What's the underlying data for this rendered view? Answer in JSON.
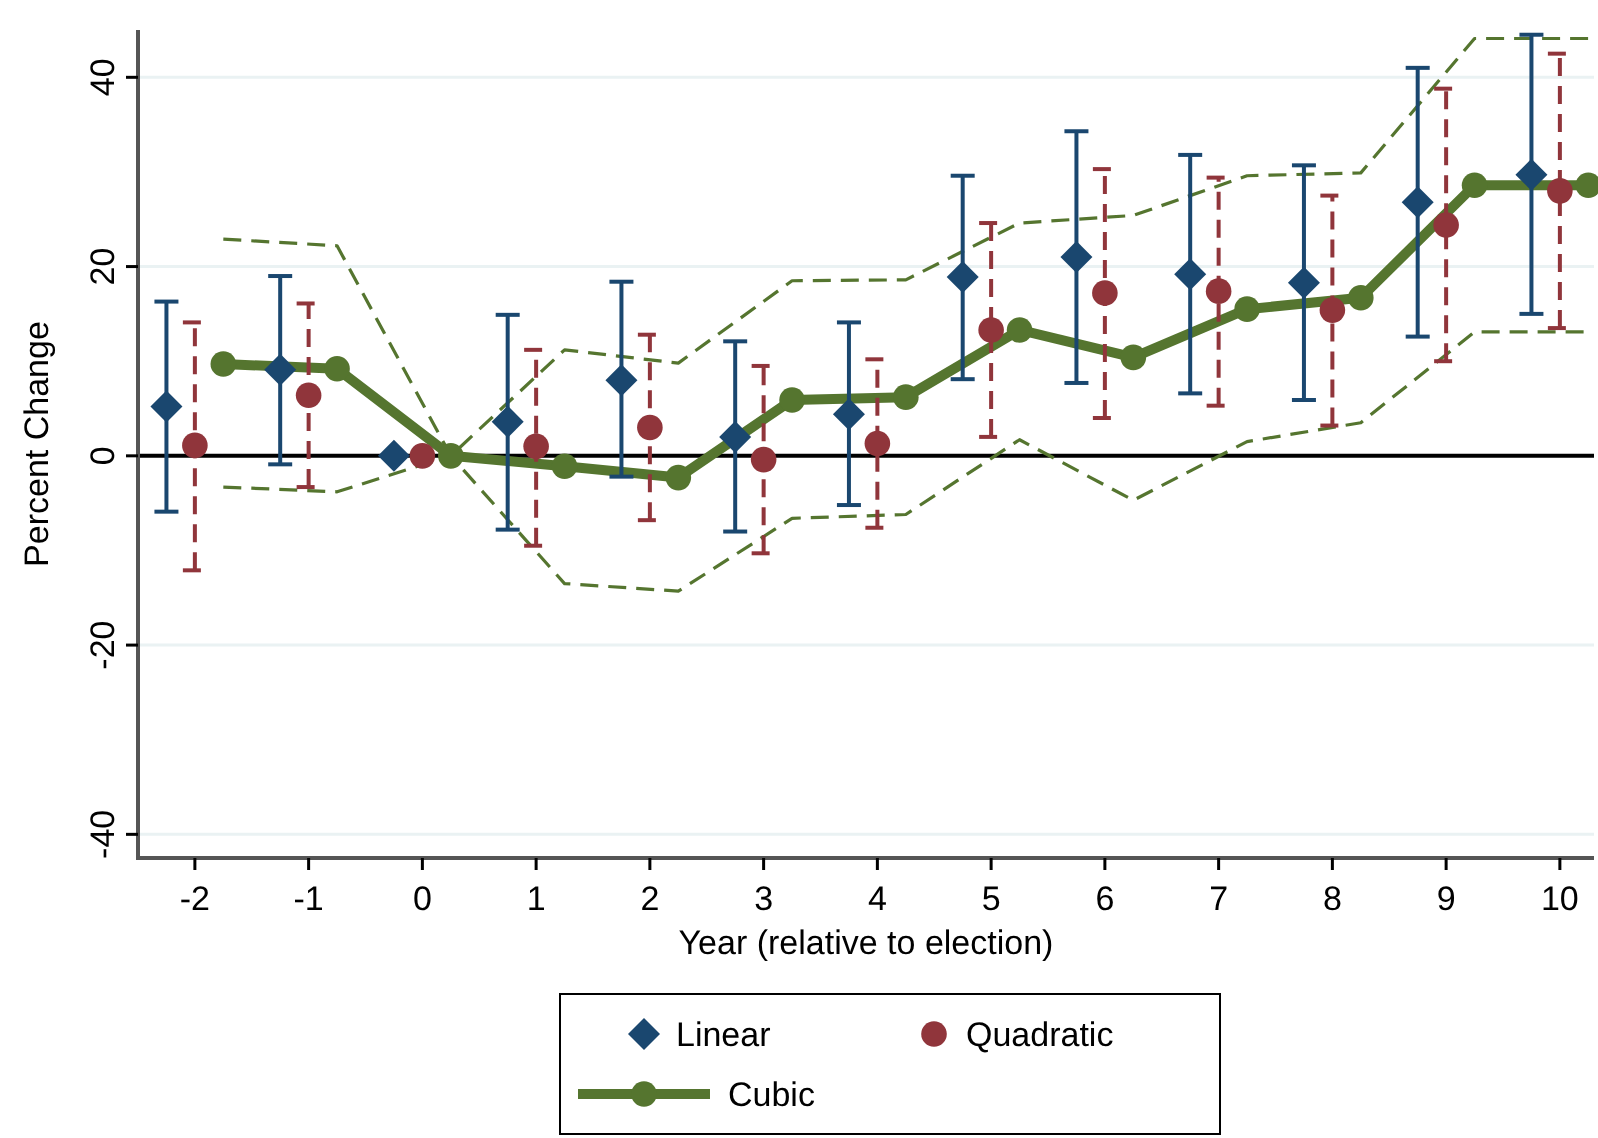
{
  "chart_data": {
    "type": "scatter",
    "xlabel": "Year (relative to election)",
    "ylabel": "Percent Change",
    "xlim": [
      -2.5,
      10.3
    ],
    "ylim": [
      -42.5,
      45
    ],
    "xticks": [
      -2,
      -1,
      0,
      1,
      2,
      3,
      4,
      5,
      6,
      7,
      8,
      9,
      10
    ],
    "yticks": [
      -40,
      -20,
      0,
      20,
      40
    ],
    "grid": "y",
    "legend": "bottom",
    "ref_lines": [
      {
        "axis": "y",
        "value": 0,
        "color": "#000000"
      }
    ],
    "series": [
      {
        "name": "Linear",
        "marker": "diamond",
        "line_style": "solid",
        "color": "#1a476f",
        "x": [
          -2.25,
          -1.25,
          -0.25,
          0.75,
          1.75,
          2.75,
          3.75,
          4.75,
          5.75,
          6.75,
          7.75,
          8.75,
          9.75
        ],
        "values": [
          5.2,
          9.1,
          0,
          3.6,
          8.0,
          2.0,
          4.4,
          18.9,
          21.0,
          19.2,
          18.3,
          26.8,
          29.7
        ],
        "errors": [
          [
            -5.9,
            16.3
          ],
          [
            -0.9,
            19.0
          ],
          null,
          [
            -7.8,
            14.9
          ],
          [
            -2.2,
            18.4
          ],
          [
            -8.0,
            12.1
          ],
          [
            -5.2,
            14.1
          ],
          [
            8.1,
            29.6
          ],
          [
            7.7,
            34.3
          ],
          [
            6.6,
            31.8
          ],
          [
            5.9,
            30.7
          ],
          [
            12.6,
            41.0
          ],
          [
            15.0,
            44.5
          ]
        ]
      },
      {
        "name": "Quadratic",
        "marker": "circle",
        "line_style": "dashed",
        "color": "#90353b",
        "x": [
          -2,
          -1,
          0,
          1,
          2,
          3,
          4,
          5,
          6,
          7,
          8,
          9,
          10
        ],
        "values": [
          1.1,
          6.4,
          0,
          1.0,
          3.0,
          -0.4,
          1.3,
          13.3,
          17.2,
          17.4,
          15.4,
          24.4,
          28.0
        ],
        "errors": [
          [
            -12.1,
            14.1
          ],
          [
            -3.3,
            16.1
          ],
          null,
          [
            -9.5,
            11.2
          ],
          [
            -6.8,
            12.8
          ],
          [
            -10.3,
            9.5
          ],
          [
            -7.6,
            10.2
          ],
          [
            2.0,
            24.6
          ],
          [
            4.0,
            30.3
          ],
          [
            5.3,
            29.4
          ],
          [
            3.2,
            27.5
          ],
          [
            10.0,
            38.8
          ],
          [
            13.5,
            42.5
          ]
        ]
      },
      {
        "name": "Cubic",
        "type": "line",
        "marker": "circle",
        "line_style": "solid",
        "color": "#55752f",
        "x": [
          -1.75,
          -0.75,
          0.25,
          1.25,
          2.25,
          3.25,
          4.25,
          5.25,
          6.25,
          7.25,
          8.25,
          9.25,
          10.25
        ],
        "values": [
          9.7,
          9.2,
          0,
          -1.1,
          -2.3,
          5.9,
          6.2,
          13.3,
          10.4,
          15.5,
          16.7,
          28.6,
          28.6
        ]
      },
      {
        "type": "line",
        "marker": "none",
        "line_style": "dashed",
        "color": "#55752f",
        "x": [
          -1.75,
          -0.75,
          0.25,
          1.25,
          2.25,
          3.25,
          4.25,
          5.25,
          6.25,
          7.25,
          8.25,
          9.25,
          10.25
        ],
        "values": [
          22.9,
          22.2,
          0,
          11.2,
          9.8,
          18.5,
          18.6,
          24.6,
          25.4,
          29.6,
          29.9,
          44.1,
          44.1
        ]
      },
      {
        "type": "line",
        "marker": "none",
        "line_style": "dashed",
        "color": "#55752f",
        "x": [
          -1.75,
          -0.75,
          0.25,
          1.25,
          2.25,
          3.25,
          4.25,
          5.25,
          6.25,
          7.25,
          8.25,
          9.25,
          10.25
        ],
        "values": [
          -3.3,
          -3.8,
          0,
          -13.5,
          -14.3,
          -6.6,
          -6.2,
          1.7,
          -4.7,
          1.5,
          3.5,
          13.1,
          13.1
        ]
      }
    ]
  }
}
